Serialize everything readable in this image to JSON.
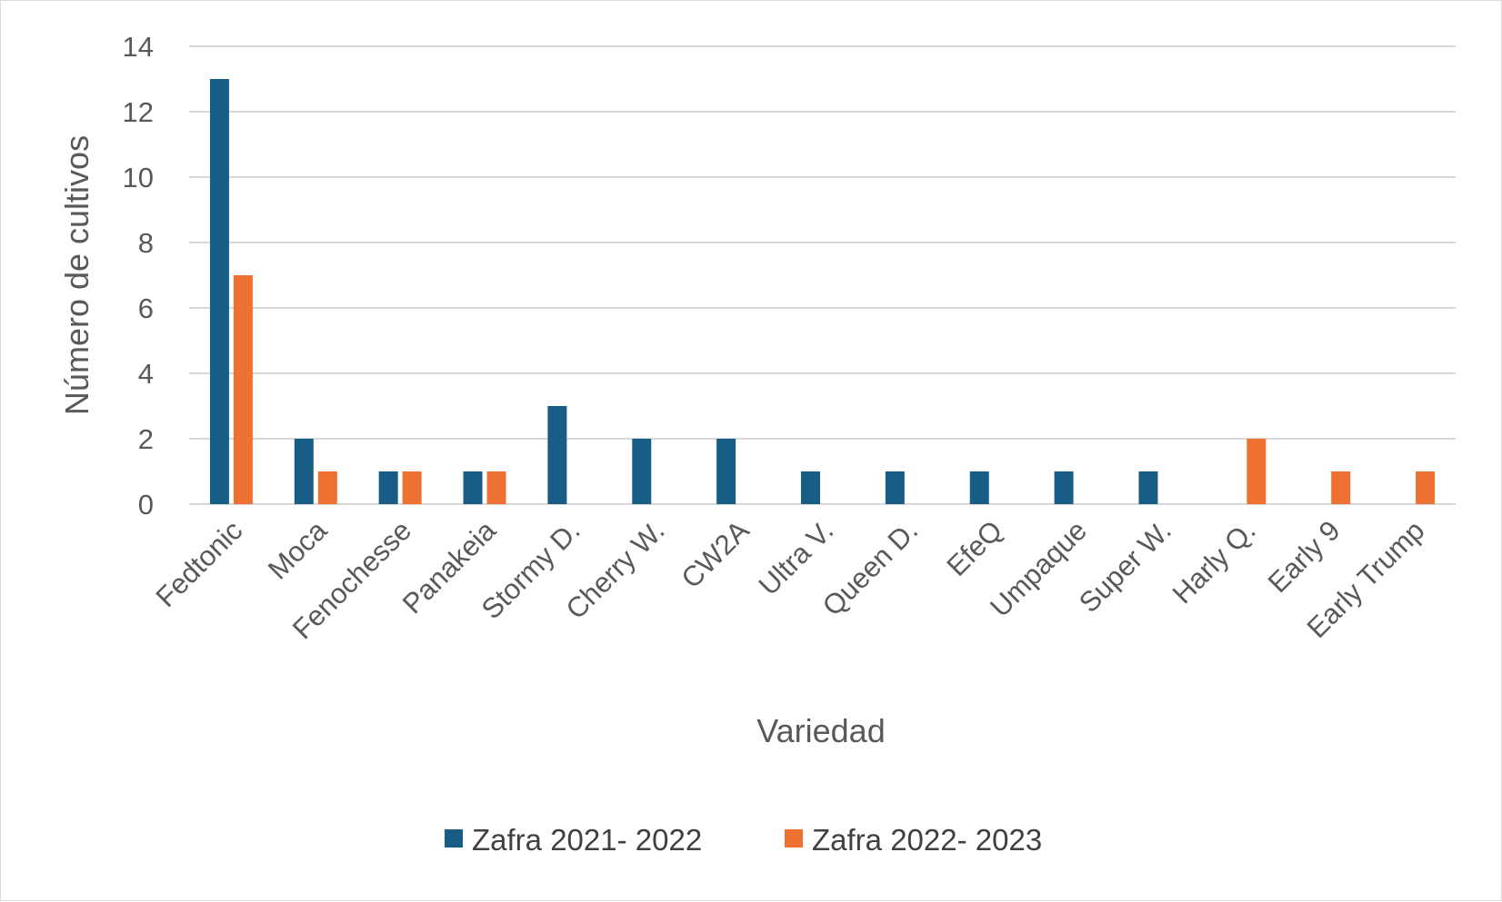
{
  "chart_data": {
    "type": "bar",
    "title": "",
    "xlabel": "Variedad",
    "ylabel": "Número de cultivos",
    "ylim": [
      0,
      14
    ],
    "yticks": [
      0,
      2,
      4,
      6,
      8,
      10,
      12,
      14
    ],
    "grid": true,
    "legend_position": "bottom",
    "categories": [
      "Fedtonic",
      "Moca",
      "Fenochesse",
      "Panakeia",
      "Stormy D.",
      "Cherry W.",
      "CW2A",
      "Ultra V.",
      "Queen D.",
      "EfeQ",
      "Umpaque",
      "Super W.",
      "Harly Q.",
      "Early 9",
      "Early Trump"
    ],
    "series": [
      {
        "name": "Zafra 2021- 2022",
        "color": "#175d85",
        "values": [
          13,
          2,
          1,
          1,
          3,
          2,
          2,
          1,
          1,
          1,
          1,
          1,
          0,
          0,
          0
        ]
      },
      {
        "name": "Zafra 2022- 2023",
        "color": "#ed7232",
        "values": [
          7,
          1,
          1,
          1,
          0,
          0,
          0,
          0,
          0,
          0,
          0,
          0,
          2,
          1,
          1
        ]
      }
    ]
  }
}
